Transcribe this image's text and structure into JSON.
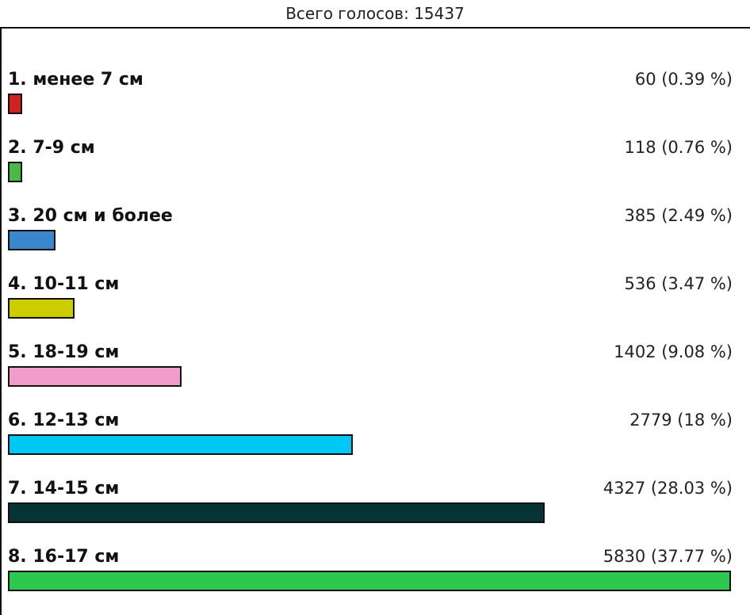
{
  "header": {
    "total_label": "Всего голосов: 15437"
  },
  "chart_data": {
    "type": "bar",
    "orientation": "horizontal",
    "title": "",
    "total": 15437,
    "categories": [
      "1. менее 7 см",
      "2. 7-9 см",
      "3. 20 см и более",
      "4. 10-11 см",
      "5. 18-19 см",
      "6. 12-13 см",
      "7. 14-15 см",
      "8. 16-17 см"
    ],
    "values": [
      60,
      118,
      385,
      536,
      1402,
      2779,
      4327,
      5830
    ],
    "value_labels": [
      "60 (0.39 %)",
      "118 (0.76 %)",
      "385 (2.49 %)",
      "536 (3.47 %)",
      "1402 (9.08 %)",
      "2779 (18 %)",
      "4327 (28.03 %)",
      "5830 (37.77 %)"
    ],
    "colors": [
      "#cc2222",
      "#4cb848",
      "#3a87d0",
      "#cccc00",
      "#f29ccb",
      "#00c8f5",
      "#063434",
      "#2ec850"
    ],
    "xlim": [
      0,
      5830
    ],
    "grid": false,
    "legend": "none"
  }
}
